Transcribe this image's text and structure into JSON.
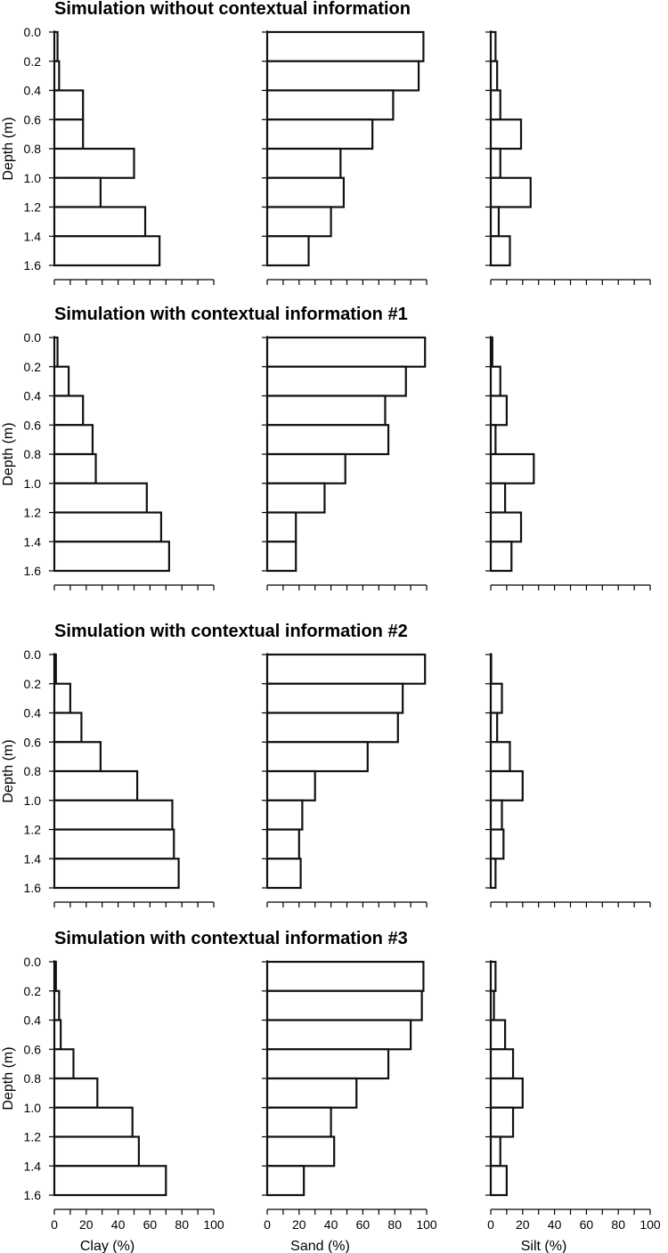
{
  "chart_data": {
    "type": "bar",
    "orientation": "horizontal",
    "y_axis_label": "Depth (m)",
    "y_ticks": [
      "0.0",
      "0.2",
      "0.4",
      "0.6",
      "0.8",
      "1.0",
      "1.2",
      "1.4",
      "1.6"
    ],
    "depth_intervals": [
      [
        0.0,
        0.2
      ],
      [
        0.2,
        0.4
      ],
      [
        0.4,
        0.6
      ],
      [
        0.6,
        0.8
      ],
      [
        0.8,
        1.0
      ],
      [
        1.0,
        1.2
      ],
      [
        1.2,
        1.4
      ],
      [
        1.4,
        1.6
      ]
    ],
    "columns": [
      {
        "xlabel": "Clay (%)",
        "xlim": [
          0,
          100
        ],
        "xticks": [
          "0",
          "20",
          "40",
          "60",
          "80",
          "100"
        ]
      },
      {
        "xlabel": "Sand (%)",
        "xlim": [
          0,
          100
        ],
        "xticks": [
          "0",
          "20",
          "40",
          "60",
          "80",
          "100"
        ]
      },
      {
        "xlabel": "Silt (%)",
        "xlim": [
          0,
          100
        ],
        "xticks": [
          "0",
          "20",
          "40",
          "60",
          "80",
          "100"
        ]
      }
    ],
    "panels": [
      {
        "title": "Simulation without contextual information",
        "clay": [
          2,
          3,
          18,
          18,
          50,
          29,
          57,
          66
        ],
        "sand": [
          98,
          95,
          79,
          66,
          46,
          48,
          40,
          26
        ],
        "silt": [
          3,
          4,
          6,
          19,
          6,
          25,
          5,
          12
        ]
      },
      {
        "title": "Simulation with contextual information #1",
        "clay": [
          2,
          9,
          18,
          24,
          26,
          58,
          67,
          72
        ],
        "sand": [
          99,
          87,
          74,
          76,
          49,
          36,
          18,
          18
        ],
        "silt": [
          1,
          6,
          10,
          3,
          27,
          9,
          19,
          13
        ]
      },
      {
        "title": "Simulation with contextual information #2",
        "clay": [
          1,
          10,
          17,
          29,
          52,
          74,
          75,
          78
        ],
        "sand": [
          99,
          85,
          82,
          63,
          30,
          22,
          20,
          21
        ],
        "silt": [
          0,
          7,
          4,
          12,
          20,
          7,
          8,
          3
        ]
      },
      {
        "title": "Simulation with contextual information #3",
        "clay": [
          1,
          3,
          4,
          12,
          27,
          49,
          53,
          70
        ],
        "sand": [
          98,
          97,
          90,
          76,
          56,
          40,
          42,
          23
        ],
        "silt": [
          3,
          2,
          9,
          14,
          20,
          14,
          6,
          10
        ]
      }
    ]
  }
}
